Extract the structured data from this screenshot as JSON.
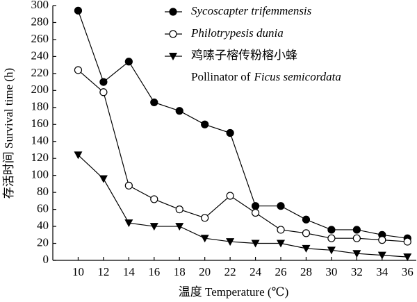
{
  "chart_data": {
    "type": "line",
    "x_label": "温度 Temperature (℃)",
    "y_label": "存活时间 Survival time (h)",
    "x": [
      10,
      12,
      14,
      16,
      18,
      20,
      22,
      24,
      26,
      28,
      30,
      32,
      34,
      36
    ],
    "series": [
      {
        "name": "Sycoscapter trifemmensis",
        "marker": "filled-circle",
        "italic": true,
        "color": "#000000",
        "values": [
          294,
          210,
          234,
          186,
          176,
          160,
          150,
          64,
          64,
          48,
          36,
          36,
          30,
          26
        ]
      },
      {
        "name": "Philotrypesis dunia",
        "marker": "open-circle",
        "italic": true,
        "color": "#000000",
        "values": [
          224,
          198,
          88,
          72,
          60,
          50,
          76,
          56,
          36,
          32,
          26,
          26,
          24,
          22
        ]
      },
      {
        "name": "鸡嗉子榕传粉榕小蜂",
        "name_line2": [
          "Pollinator of",
          "Ficus semicordata"
        ],
        "marker": "filled-triangle",
        "italic": false,
        "color": "#000000",
        "values": [
          124,
          96,
          44,
          40,
          40,
          26,
          22,
          20,
          20,
          14,
          12,
          8,
          6,
          4
        ]
      }
    ],
    "xlim": [
      8,
      36.7
    ],
    "xticks": [
      10,
      12,
      14,
      16,
      18,
      20,
      22,
      24,
      26,
      28,
      30,
      32,
      34,
      36
    ],
    "ylim": [
      0,
      300
    ],
    "yticks": [
      0,
      20,
      40,
      60,
      80,
      100,
      120,
      140,
      160,
      180,
      200,
      220,
      240,
      260,
      280,
      300
    ],
    "grid": false
  }
}
